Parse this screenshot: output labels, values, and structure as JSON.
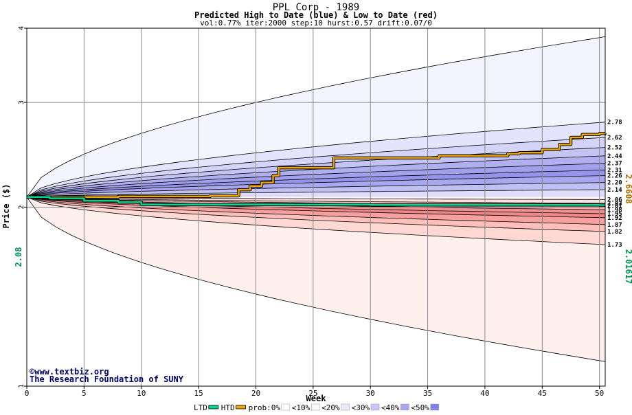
{
  "chart_data": {
    "type": "area",
    "title": "PPL Corp - 1989",
    "subtitle": "Predicted High to Date (blue) &  Low to Date (red)",
    "params": "vol:0.77% iter:2000 step:10 hurst:0.57 drift:0.07/0",
    "xlabel": "Week",
    "ylabel": "Price ($)",
    "xlim": [
      0,
      50.5
    ],
    "ylim": [
      1,
      4
    ],
    "y_scale": "log",
    "grid": true,
    "x_ticks": [
      "0",
      "5",
      "10",
      "15",
      "20",
      "25",
      "30",
      "35",
      "40",
      "45",
      "50"
    ],
    "y_ticks": [
      "1",
      "2",
      "3",
      "4"
    ],
    "start_price_label": "2.08",
    "start_price": 2.08,
    "htd_final_label": "2.6608",
    "htd_final": 2.6608,
    "ltd_final_label": "2.01617",
    "ltd_final": 2.01617,
    "high_band_levels": [
      {
        "label": "2.78",
        "value": 2.78
      },
      {
        "label": "2.62",
        "value": 2.62
      },
      {
        "label": "2.52",
        "value": 2.52
      },
      {
        "label": "2.44",
        "value": 2.44
      },
      {
        "label": "2.37",
        "value": 2.37
      },
      {
        "label": "2.31",
        "value": 2.31
      },
      {
        "label": "2.26",
        "value": 2.26
      },
      {
        "label": "2.20",
        "value": 2.2
      },
      {
        "label": "2.14",
        "value": 2.14
      }
    ],
    "high_extreme": 3.87,
    "low_band_levels": [
      {
        "label": "2.06",
        "value": 2.06
      },
      {
        "label": "2.03",
        "value": 2.03
      },
      {
        "label": "2.01",
        "value": 2.01
      },
      {
        "label": "1.98",
        "value": 1.98
      },
      {
        "label": "1.95",
        "value": 1.95
      },
      {
        "label": "1.92",
        "value": 1.92
      },
      {
        "label": "1.87",
        "value": 1.87
      },
      {
        "label": "1.82",
        "value": 1.82
      },
      {
        "label": "1.73",
        "value": 1.73
      }
    ],
    "low_extreme": 1.1,
    "series": [
      {
        "name": "HTD",
        "color": "#f0a800",
        "x": [
          0,
          4,
          8,
          12,
          16,
          17.5,
          18.5,
          19.5,
          20.5,
          21.5,
          22,
          24,
          26,
          26.8,
          28,
          32,
          36,
          40,
          42,
          43,
          45,
          46.5,
          47.5,
          48.5,
          50,
          50.5
        ],
        "y": [
          2.08,
          2.08,
          2.085,
          2.085,
          2.09,
          2.09,
          2.14,
          2.17,
          2.2,
          2.26,
          2.33,
          2.33,
          2.33,
          2.42,
          2.42,
          2.42,
          2.44,
          2.44,
          2.46,
          2.47,
          2.5,
          2.55,
          2.62,
          2.65,
          2.66,
          2.6608
        ]
      },
      {
        "name": "LTD",
        "color": "#00d890",
        "x": [
          0,
          2,
          5,
          8,
          10,
          15,
          20,
          25,
          30,
          40,
          50,
          50.5
        ],
        "y": [
          2.08,
          2.07,
          2.05,
          2.04,
          2.02,
          2.02,
          2.02,
          2.02,
          2.017,
          2.017,
          2.0162,
          2.01617
        ]
      }
    ],
    "legend": [
      {
        "label": "LTD",
        "kind": "line",
        "color": "#00d890"
      },
      {
        "label": "HTD",
        "kind": "line",
        "color": "#f0a800"
      },
      {
        "label": "prob:0%",
        "kind": "swatch",
        "color": "#ffffff"
      },
      {
        "label": "<10%",
        "kind": "swatch",
        "color": "#f8f8ff"
      },
      {
        "label": "<20%",
        "kind": "swatch",
        "color": "#e8e8ff"
      },
      {
        "label": "<30%",
        "kind": "swatch",
        "color": "#c8c8f8"
      },
      {
        "label": "<40%",
        "kind": "swatch",
        "color": "#a8a8f0"
      },
      {
        "label": "<50%",
        "kind": "swatch",
        "color": "#8080e8"
      }
    ],
    "legend_placement": "bottom"
  },
  "watermark": {
    "copyright_line": "©www.textbiz.org",
    "org_line": "The Research Foundation of SUNY"
  }
}
